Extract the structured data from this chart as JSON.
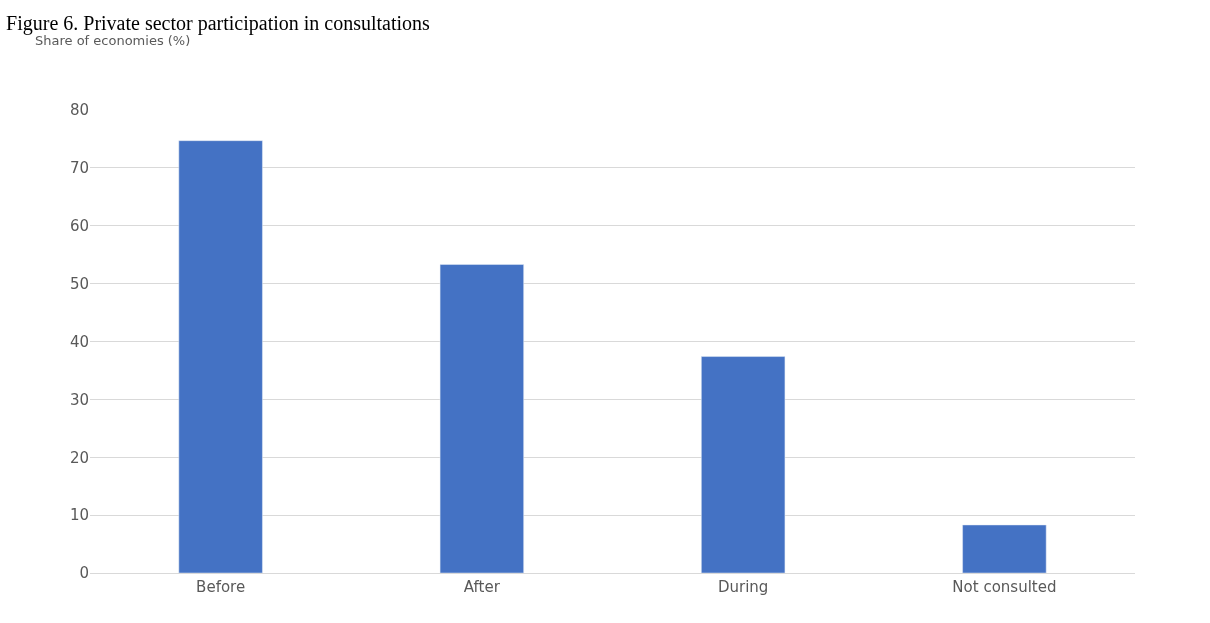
{
  "chart_data": {
    "type": "bar",
    "title": "Figure 6. Private sector participation in consultations",
    "ylabel": "Share of economies (%)",
    "categories": [
      "Before",
      "After",
      "During",
      "Not consulted"
    ],
    "values": [
      74.7,
      53.3,
      37.4,
      8.3
    ],
    "color": "#4472c4",
    "ylim": [
      0,
      80
    ],
    "yticks": [
      0,
      10,
      20,
      30,
      40,
      50,
      60,
      70,
      80
    ],
    "grid": "y"
  }
}
